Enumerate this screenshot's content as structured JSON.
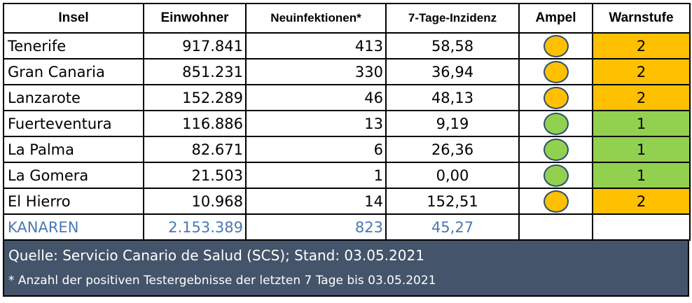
{
  "colors": {
    "orange": "#ffc000",
    "green": "#92d050",
    "total_text": "#4a77b4",
    "footer_bg": "#44546a"
  },
  "header": {
    "insel": "Insel",
    "einwohner": "Einwohner",
    "neuinfektionen": "Neuinfektionen*",
    "inzidenz": "7-Tage-Inzidenz",
    "ampel": "Ampel",
    "warnstufe": "Warnstufe"
  },
  "rows": [
    {
      "insel": "Tenerife",
      "einwohner": "917.841",
      "neu": "413",
      "inzidenz": "58,58",
      "ampel": "orange",
      "stufe": "2"
    },
    {
      "insel": "Gran Canaria",
      "einwohner": "851.231",
      "neu": "330",
      "inzidenz": "36,94",
      "ampel": "orange",
      "stufe": "2"
    },
    {
      "insel": "Lanzarote",
      "einwohner": "152.289",
      "neu": "46",
      "inzidenz": "48,13",
      "ampel": "orange",
      "stufe": "2"
    },
    {
      "insel": "Fuerteventura",
      "einwohner": "116.886",
      "neu": "13",
      "inzidenz": "9,19",
      "ampel": "green",
      "stufe": "1"
    },
    {
      "insel": "La Palma",
      "einwohner": "82.671",
      "neu": "6",
      "inzidenz": "26,36",
      "ampel": "green",
      "stufe": "1"
    },
    {
      "insel": "La Gomera",
      "einwohner": "21.503",
      "neu": "1",
      "inzidenz": "0,00",
      "ampel": "green",
      "stufe": "1"
    },
    {
      "insel": "El Hierro",
      "einwohner": "10.968",
      "neu": "14",
      "inzidenz": "152,51",
      "ampel": "orange",
      "stufe": "2"
    }
  ],
  "total": {
    "insel": "KANAREN",
    "einwohner": "2.153.389",
    "neu": "823",
    "inzidenz": "45,27"
  },
  "footer": {
    "source": "Quelle: Servicio Canario de Salud (SCS); Stand: 03.05.2021",
    "note": "* Anzahl der positiven Testergebnisse der letzten 7 Tage bis 03.05.2021"
  }
}
